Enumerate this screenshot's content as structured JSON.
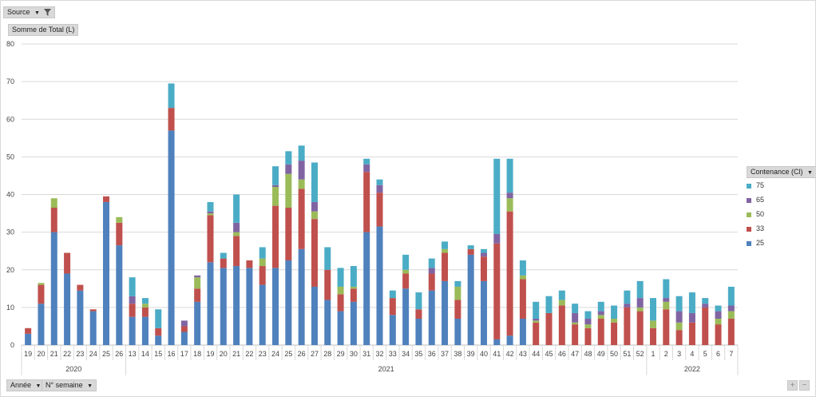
{
  "filters": {
    "source_label": "Source",
    "measure_label": "Somme de Total (L)",
    "legend_title": "Contenance (Cl)",
    "row_field_1": "Année",
    "row_field_2": "N° semaine",
    "plus": "+",
    "minus": "−"
  },
  "chart_data": {
    "type": "bar",
    "stacked": true,
    "ylim": [
      0,
      80
    ],
    "yticks": [
      0,
      10,
      20,
      30,
      40,
      50,
      60,
      70,
      80
    ],
    "grid": true,
    "legend_position": "right",
    "categories": [
      "19",
      "20",
      "21",
      "22",
      "23",
      "24",
      "25",
      "26",
      "13",
      "14",
      "15",
      "16",
      "17",
      "18",
      "19",
      "20",
      "21",
      "22",
      "23",
      "24",
      "25",
      "26",
      "27",
      "28",
      "29",
      "30",
      "31",
      "32",
      "33",
      "34",
      "35",
      "36",
      "37",
      "38",
      "39",
      "40",
      "41",
      "42",
      "43",
      "44",
      "45",
      "46",
      "47",
      "48",
      "49",
      "50",
      "51",
      "52",
      "1",
      "2",
      "3",
      "4",
      "5",
      "6",
      "7"
    ],
    "groups": [
      {
        "label": "2020",
        "start": 0,
        "end": 7
      },
      {
        "label": "2021",
        "start": 8,
        "end": 47
      },
      {
        "label": "2022",
        "start": 48,
        "end": 54
      }
    ],
    "series": [
      {
        "name": "25",
        "color": "#4f81bd",
        "values": [
          3,
          11,
          30,
          19,
          14.5,
          9,
          38,
          26.5,
          7.5,
          7.5,
          2.5,
          57,
          3.5,
          11.5,
          22,
          20.5,
          21,
          20.5,
          16,
          20.5,
          22.5,
          25.5,
          15.5,
          12,
          9,
          11.5,
          30,
          31.5,
          8,
          15,
          7,
          14.5,
          17,
          7,
          24,
          17,
          1.5,
          2.5,
          7,
          0,
          0,
          0,
          0,
          0,
          0,
          0,
          0,
          0,
          0,
          0,
          0,
          0,
          0,
          0,
          0
        ]
      },
      {
        "name": "33",
        "color": "#c0504d",
        "values": [
          1.5,
          5,
          6.5,
          5.5,
          1.5,
          0.5,
          1.5,
          6,
          3.5,
          2.5,
          2,
          6,
          1.5,
          3.5,
          12.5,
          2.5,
          8,
          2,
          5,
          16.5,
          14,
          16,
          18,
          8,
          4.5,
          3.5,
          16,
          9,
          4.5,
          4,
          2.5,
          4.5,
          7.5,
          5,
          1.5,
          6.5,
          25.5,
          33,
          10.5,
          6,
          8.5,
          10.5,
          5.5,
          4.5,
          7,
          6,
          10,
          9,
          4.5,
          9.5,
          4,
          6,
          10,
          5.5,
          7
        ]
      },
      {
        "name": "50",
        "color": "#9bbb59",
        "values": [
          0,
          0.5,
          2.5,
          0,
          0,
          0,
          0,
          1.5,
          0,
          1,
          0,
          0,
          0,
          3,
          0.5,
          0,
          1,
          0,
          2,
          5,
          9,
          2.5,
          2,
          0,
          2,
          0.5,
          0,
          0,
          0,
          1,
          0,
          0,
          1,
          3.5,
          0,
          0,
          0,
          3.5,
          1,
          0.5,
          0,
          1.5,
          0.5,
          1,
          1,
          1,
          0,
          1,
          2,
          2,
          2,
          0,
          0,
          1.5,
          2
        ]
      },
      {
        "name": "65",
        "color": "#8064a2",
        "values": [
          0,
          0,
          0,
          0,
          0,
          0,
          0,
          0,
          2,
          0,
          0,
          0,
          1.5,
          0.5,
          0.5,
          0,
          2.5,
          0,
          0,
          0.5,
          2.5,
          5,
          2.5,
          0,
          0,
          0,
          2,
          2,
          0,
          0,
          0,
          1.5,
          0,
          0,
          0,
          1,
          2.5,
          1.5,
          0,
          0.5,
          0,
          0,
          2.5,
          1.5,
          1,
          0,
          1,
          2.5,
          0,
          1,
          3,
          2.5,
          1,
          2,
          1.5
        ]
      },
      {
        "name": "75",
        "color": "#4bacc6",
        "values": [
          0,
          0,
          0,
          0,
          0,
          0,
          0,
          0,
          5,
          1.5,
          5,
          6.5,
          0,
          0,
          2.5,
          1.5,
          7.5,
          0,
          3,
          5,
          3.5,
          4,
          10.5,
          6,
          5,
          5.5,
          1.5,
          1.5,
          2,
          4,
          4.5,
          2.5,
          2,
          1.5,
          1,
          1,
          20,
          9,
          4,
          4.5,
          4.5,
          2.5,
          2.5,
          2,
          2.5,
          3.5,
          3.5,
          4.5,
          6,
          5,
          4,
          5.5,
          1.5,
          1.5,
          5
        ]
      }
    ]
  }
}
